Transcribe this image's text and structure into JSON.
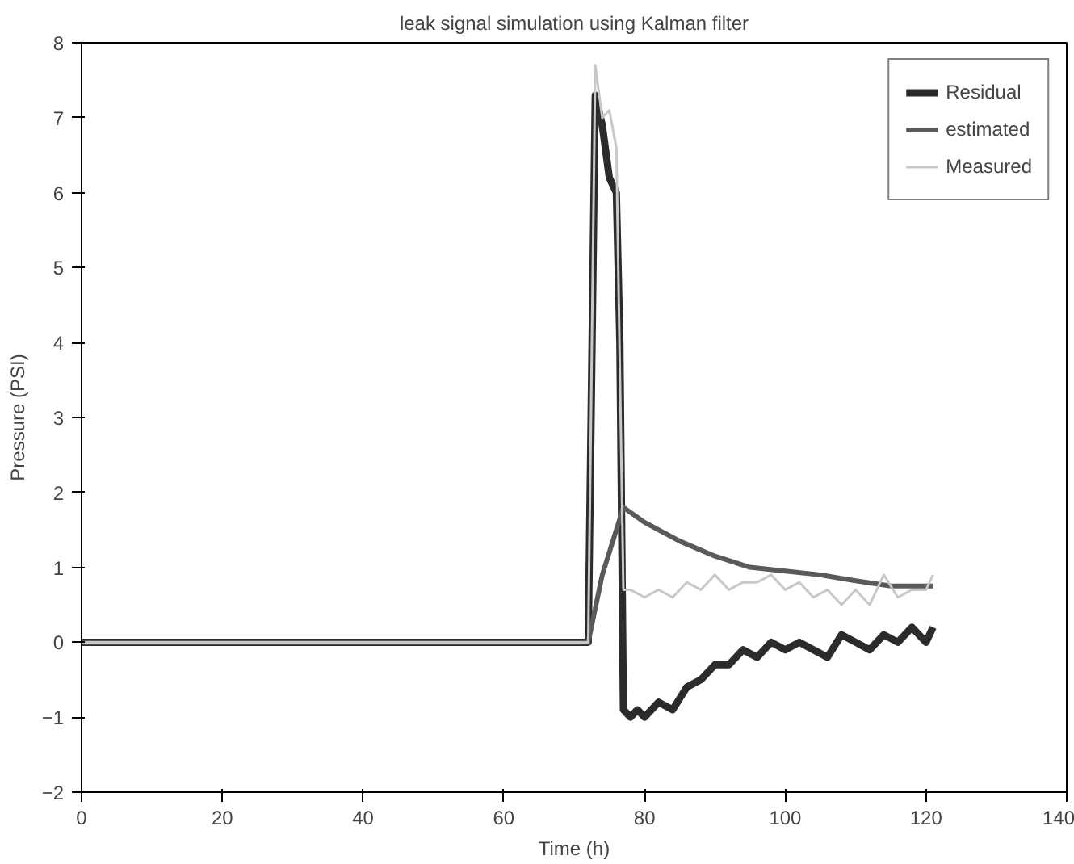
{
  "chart_data": {
    "type": "line",
    "title": "leak signal simulation using Kalman filter",
    "xlabel": "Time (h)",
    "ylabel": "Pressure (PSI)",
    "xlim": [
      0,
      140
    ],
    "ylim": [
      -2,
      8
    ],
    "xticks": [
      0,
      20,
      40,
      60,
      80,
      100,
      120,
      140
    ],
    "yticks": [
      -2,
      -1,
      0,
      1,
      2,
      3,
      4,
      5,
      6,
      7,
      8
    ],
    "legend": "top right",
    "grid": false,
    "line_style": "solid",
    "series": [
      {
        "name": "Residual",
        "color": "#2b2b2b",
        "x": [
          0,
          6,
          10,
          20,
          30,
          40,
          50,
          60,
          70,
          72,
          73,
          74,
          75,
          76,
          76.5,
          77,
          78,
          79,
          80,
          82,
          84,
          86,
          88,
          90,
          92,
          94,
          96,
          98,
          100,
          102,
          104,
          106,
          108,
          110,
          112,
          114,
          116,
          118,
          120,
          121
        ],
        "values": [
          0,
          0,
          0,
          0,
          0,
          0,
          0,
          0,
          0,
          0,
          7.3,
          6.9,
          6.2,
          6,
          4,
          -0.9,
          -1.0,
          -0.9,
          -1.0,
          -0.8,
          -0.9,
          -0.6,
          -0.5,
          -0.3,
          -0.3,
          -0.1,
          -0.2,
          0,
          -0.1,
          0,
          -0.1,
          -0.2,
          0.1,
          0,
          -0.1,
          0.1,
          0,
          0.2,
          0,
          0.2
        ]
      },
      {
        "name": "estimated",
        "color": "#5a5a5a",
        "x": [
          0,
          10,
          20,
          30,
          40,
          50,
          60,
          70,
          72,
          74,
          76,
          77,
          80,
          85,
          90,
          95,
          100,
          105,
          110,
          115,
          121
        ],
        "values": [
          0,
          0,
          0,
          0,
          0,
          0,
          0,
          0,
          0,
          0.9,
          1.5,
          1.8,
          1.6,
          1.35,
          1.15,
          1.0,
          0.95,
          0.9,
          0.82,
          0.75,
          0.75
        ]
      },
      {
        "name": "Measured",
        "color": "#c8c8c8",
        "x": [
          0,
          10,
          20,
          30,
          40,
          50,
          60,
          70,
          72,
          73,
          74,
          75,
          76,
          77,
          78,
          80,
          82,
          84,
          86,
          88,
          90,
          92,
          94,
          96,
          98,
          100,
          102,
          104,
          106,
          108,
          110,
          112,
          114,
          116,
          118,
          120,
          121
        ],
        "values": [
          0,
          0,
          0,
          0,
          0,
          0,
          0,
          0,
          0,
          7.7,
          7.0,
          7.1,
          6.6,
          0.7,
          0.7,
          0.6,
          0.7,
          0.6,
          0.8,
          0.7,
          0.9,
          0.7,
          0.8,
          0.8,
          0.9,
          0.7,
          0.8,
          0.6,
          0.7,
          0.5,
          0.7,
          0.5,
          0.9,
          0.6,
          0.7,
          0.7,
          0.9
        ]
      }
    ]
  }
}
